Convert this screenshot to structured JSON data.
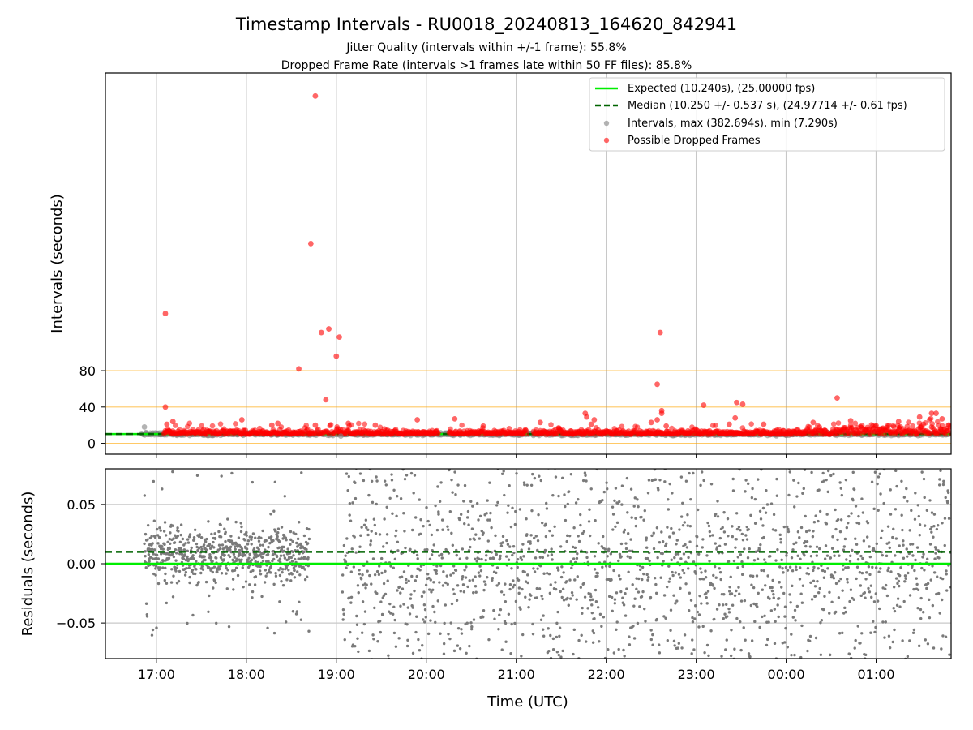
{
  "figure": {
    "title": "Timestamp Intervals - RU0018_20240813_164620_842941",
    "subtitle1": "Jitter Quality (intervals within +/-1 frame): 55.8%",
    "subtitle2": "Dropped Frame Rate (intervals >1 frames late within 50 FF files): 85.8%"
  },
  "chart_data": [
    {
      "type": "scatter",
      "panel": "top",
      "ylabel": "Intervals (seconds)",
      "xlabel": "",
      "xlim": [
        "16:26",
        "01:50"
      ],
      "ylim": [
        -12,
        408
      ],
      "yticks": [
        0,
        40,
        80
      ],
      "ytick_labels": [
        "0",
        "40",
        "80"
      ],
      "hlines": [
        {
          "y": 0,
          "color": "#ffa500"
        },
        {
          "y": 40,
          "color": "#ffa500"
        },
        {
          "y": 80,
          "color": "#ffa500"
        }
      ],
      "legend_position": "top-right",
      "legend": [
        {
          "label": "Expected (10.240s), (25.00000 fps)",
          "style": "solid-line",
          "color": "#00ee00"
        },
        {
          "label": "Median (10.250 +/- 0.537 s), (24.97714 +/- 0.61 fps)",
          "style": "dashed-line",
          "color": "#006400"
        },
        {
          "label": "Intervals, max (382.694s), min (7.290s)",
          "style": "marker",
          "color": "#808080"
        },
        {
          "label": "Possible Dropped Frames",
          "style": "marker",
          "color": "#ff0000"
        }
      ],
      "expected_interval": 10.24,
      "median_interval": 10.25,
      "series": [
        {
          "name": "Possible Dropped Frames",
          "color": "#ff0000",
          "points": [
            {
              "x": "17:06",
              "y": 143
            },
            {
              "x": "17:06",
              "y": 40
            },
            {
              "x": "17:07",
              "y": 21
            },
            {
              "x": "17:11",
              "y": 24
            },
            {
              "x": "17:57",
              "y": 26
            },
            {
              "x": "18:17",
              "y": 20
            },
            {
              "x": "18:21",
              "y": 22
            },
            {
              "x": "18:35",
              "y": 82
            },
            {
              "x": "18:43",
              "y": 220
            },
            {
              "x": "18:46",
              "y": 382.7
            },
            {
              "x": "18:46",
              "y": 20
            },
            {
              "x": "18:50",
              "y": 122
            },
            {
              "x": "18:53",
              "y": 48
            },
            {
              "x": "18:55",
              "y": 126
            },
            {
              "x": "19:00",
              "y": 96
            },
            {
              "x": "19:02",
              "y": 117
            },
            {
              "x": "19:08",
              "y": 22
            },
            {
              "x": "19:26",
              "y": 20
            },
            {
              "x": "19:54",
              "y": 26
            },
            {
              "x": "20:19",
              "y": 27
            },
            {
              "x": "20:38",
              "y": 19
            },
            {
              "x": "21:16",
              "y": 23
            },
            {
              "x": "21:46",
              "y": 33
            },
            {
              "x": "21:47",
              "y": 29
            },
            {
              "x": "21:50",
              "y": 21
            },
            {
              "x": "21:52",
              "y": 26
            },
            {
              "x": "22:30",
              "y": 23
            },
            {
              "x": "22:34",
              "y": 26
            },
            {
              "x": "22:34",
              "y": 65
            },
            {
              "x": "22:36",
              "y": 122
            },
            {
              "x": "22:37",
              "y": 36
            },
            {
              "x": "22:37",
              "y": 33
            },
            {
              "x": "22:40",
              "y": 19
            },
            {
              "x": "23:05",
              "y": 42
            },
            {
              "x": "23:22",
              "y": 21
            },
            {
              "x": "23:26",
              "y": 28
            },
            {
              "x": "23:27",
              "y": 45
            },
            {
              "x": "23:31",
              "y": 43
            },
            {
              "x": "23:45",
              "y": 21
            },
            {
              "x": "00:18",
              "y": 23
            },
            {
              "x": "00:34",
              "y": 50
            },
            {
              "x": "00:43",
              "y": 25
            },
            {
              "x": "01:15",
              "y": 24
            },
            {
              "x": "01:29",
              "y": 29
            },
            {
              "x": "01:37",
              "y": 33
            },
            {
              "x": "01:40",
              "y": 33
            },
            {
              "x": "01:44",
              "y": 27
            }
          ],
          "baseline_band": {
            "y_min": 8,
            "y_max": 20,
            "note": "dense red markers along the baseline over the whole time range"
          }
        },
        {
          "name": "Intervals",
          "color": "#808080",
          "points": [
            {
              "x": "16:52",
              "y": 18
            },
            {
              "x": "19:03",
              "y": 8
            }
          ]
        }
      ]
    },
    {
      "type": "scatter",
      "panel": "bottom",
      "ylabel": "Residuals (seconds)",
      "xlabel": "Time (UTC)",
      "xlim": [
        "16:26",
        "01:50"
      ],
      "ylim": [
        -0.08,
        0.08
      ],
      "yticks": [
        -0.05,
        0.0,
        0.05
      ],
      "ytick_labels": [
        "−0.05",
        "0.00",
        "0.05"
      ],
      "xtick_labels": [
        "17:00",
        "18:00",
        "19:00",
        "20:00",
        "21:00",
        "22:00",
        "23:00",
        "00:00",
        "01:00"
      ],
      "grid": true,
      "hlines": [
        {
          "y": 0.0,
          "color": "#00ee00",
          "style": "solid"
        },
        {
          "y": 0.01,
          "color": "#006400",
          "style": "dashed"
        }
      ],
      "series": [
        {
          "name": "Residuals",
          "color": "#808080",
          "segments": [
            {
              "x_from": "16:52",
              "x_to": "18:42",
              "mean": 0.008,
              "spread": 0.013
            },
            {
              "x_from": "19:04",
              "x_to": "01:50",
              "mean": 0.0,
              "spread": 0.045
            }
          ]
        }
      ]
    }
  ]
}
